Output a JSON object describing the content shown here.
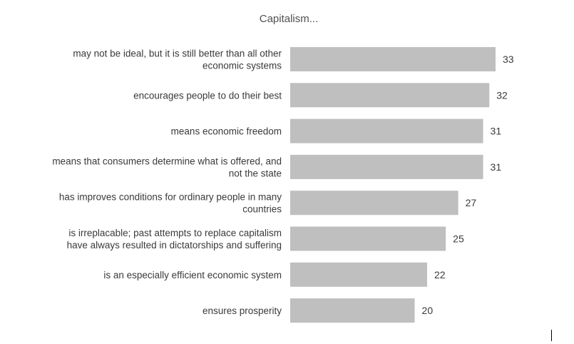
{
  "chart_data": {
    "type": "bar",
    "orientation": "horizontal",
    "title": "Capitalism...",
    "categories": [
      "may not be ideal, but it is still better than all other economic systems",
      "encourages people to do their best",
      "means economic freedom",
      "means that consumers determine what is offered, and not the state",
      "has improves conditions for ordinary people in many countries",
      "is irreplacable; past attempts to replace capitalism have always resulted in dictatorships and suffering",
      "is an especially efficient economic system",
      "ensures prosperity"
    ],
    "category_lines": [
      [
        "may not be ideal, but it is still better than all other",
        "economic systems"
      ],
      [
        "encourages people to do their best"
      ],
      [
        "means economic freedom"
      ],
      [
        "means that consumers determine what is offered, and",
        "not the state"
      ],
      [
        "has improves conditions for ordinary people in many",
        "countries"
      ],
      [
        "is irreplacable; past attempts to replace capitalism",
        "have always resulted in dictatorships and suffering"
      ],
      [
        "is an especially efficient economic system"
      ],
      [
        "ensures prosperity"
      ]
    ],
    "values": [
      33,
      32,
      31,
      31,
      27,
      25,
      22,
      20
    ],
    "bar_color": "#bfbfbf",
    "grid": false,
    "legend": "none"
  }
}
